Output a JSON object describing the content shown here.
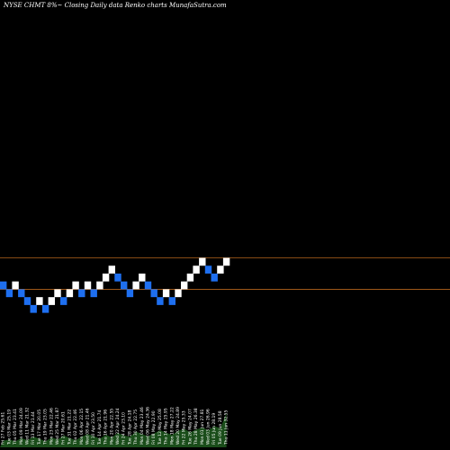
{
  "header": {
    "title": "NYSE CHMT 8%~   Closing Daily data  Renko  charts MunafaSutra.com"
  },
  "colors": {
    "background": "#000000",
    "up_brick": "#ffffff",
    "down_brick": "#1e6ff0",
    "level_line": "#b5651d",
    "volume": "#1a4d1a"
  },
  "chart_data": {
    "type": "renko",
    "title": "NYSE CHMT 8%~   Closing Daily data  Renko  charts MunafaSutra.com",
    "y_range": [
      0,
      63
    ],
    "level_lines": [
      26.9,
      22.5
    ],
    "bricks": [
      {
        "low": 22.5,
        "dir": "down"
      },
      {
        "low": 21.4,
        "dir": "down"
      },
      {
        "low": 22.5,
        "dir": "up"
      },
      {
        "low": 21.4,
        "dir": "down"
      },
      {
        "low": 20.3,
        "dir": "down"
      },
      {
        "low": 19.2,
        "dir": "down"
      },
      {
        "low": 20.3,
        "dir": "up"
      },
      {
        "low": 19.2,
        "dir": "down"
      },
      {
        "low": 20.3,
        "dir": "up"
      },
      {
        "low": 21.4,
        "dir": "up"
      },
      {
        "low": 20.3,
        "dir": "down"
      },
      {
        "low": 21.4,
        "dir": "up"
      },
      {
        "low": 22.5,
        "dir": "up"
      },
      {
        "low": 21.4,
        "dir": "down"
      },
      {
        "low": 22.5,
        "dir": "up"
      },
      {
        "low": 21.4,
        "dir": "down"
      },
      {
        "low": 22.5,
        "dir": "up"
      },
      {
        "low": 23.6,
        "dir": "up"
      },
      {
        "low": 24.7,
        "dir": "up"
      },
      {
        "low": 23.6,
        "dir": "down"
      },
      {
        "low": 22.5,
        "dir": "down"
      },
      {
        "low": 21.4,
        "dir": "down"
      },
      {
        "low": 22.5,
        "dir": "up"
      },
      {
        "low": 23.6,
        "dir": "up"
      },
      {
        "low": 22.5,
        "dir": "down"
      },
      {
        "low": 21.4,
        "dir": "down"
      },
      {
        "low": 20.3,
        "dir": "down"
      },
      {
        "low": 21.4,
        "dir": "up"
      },
      {
        "low": 20.3,
        "dir": "down"
      },
      {
        "low": 21.4,
        "dir": "up"
      },
      {
        "low": 22.5,
        "dir": "up"
      },
      {
        "low": 23.6,
        "dir": "up"
      },
      {
        "low": 24.7,
        "dir": "up"
      },
      {
        "low": 25.8,
        "dir": "up"
      },
      {
        "low": 24.7,
        "dir": "down"
      },
      {
        "low": 23.6,
        "dir": "down"
      },
      {
        "low": 24.7,
        "dir": "up"
      },
      {
        "low": 25.8,
        "dir": "up"
      }
    ],
    "date_labels": [
      "Fri 27 Feb",
      "Tue 03 Mar",
      "Thu 05 Mar",
      "Mon 09 Mar",
      "Wed 11 Mar",
      "Fri 13 Mar",
      "Tue 17 Mar",
      "Thu 19 Mar",
      "Mon 23 Mar",
      "Wed 25 Mar",
      "Fri 27 Mar",
      "Tue 31 Mar",
      "Thu 02 Apr",
      "Mon 06 Apr",
      "Wed 08 Apr",
      "Fri 10 Apr",
      "Tue 14 Apr",
      "Thu 16 Apr",
      "Mon 20 Apr",
      "Wed 22 Apr",
      "Fri 24 Apr",
      "Tue 28 Apr",
      "Thu 30 Apr",
      "Mon 04 May",
      "Wed 06 May",
      "Fri 08 May",
      "Tue 12 May",
      "Thu 14 May",
      "Mon 18 May",
      "Wed 20 May",
      "Fri 22 May",
      "Tue 26 May",
      "Thu 28 May",
      "Mon 01 Jun",
      "Wed 03 Jun",
      "Fri 05 Jun",
      "Tue 09 Jun",
      "Thu 11 Jun"
    ],
    "value_labels": [
      "25.61",
      "25.19",
      "23.41",
      "24.09",
      "21.32",
      "21.44",
      "20.05",
      "23.05",
      "22.46",
      "21.87",
      "20.61",
      "21.22",
      "22.46",
      "22.15",
      "21.46",
      "23.50",
      "21.74",
      "21.96",
      "22.55",
      "24.24",
      "23.10",
      "24.18",
      "22.75",
      "23.46",
      "24.36",
      "22.90",
      "25.08",
      "25.95",
      "27.22",
      "24.89",
      "25.33",
      "24.07",
      "26.38",
      "27.81",
      "26.96",
      "28.19",
      "28.58",
      "32.55"
    ],
    "volume": [
      10,
      12,
      9,
      14,
      11,
      16,
      13,
      9,
      15,
      12,
      18,
      14,
      11,
      16,
      20,
      17,
      13,
      19,
      15,
      22,
      18,
      16,
      24,
      20,
      17,
      21,
      26,
      22,
      19,
      25,
      28,
      23,
      27,
      30,
      26,
      32,
      29,
      52
    ]
  }
}
